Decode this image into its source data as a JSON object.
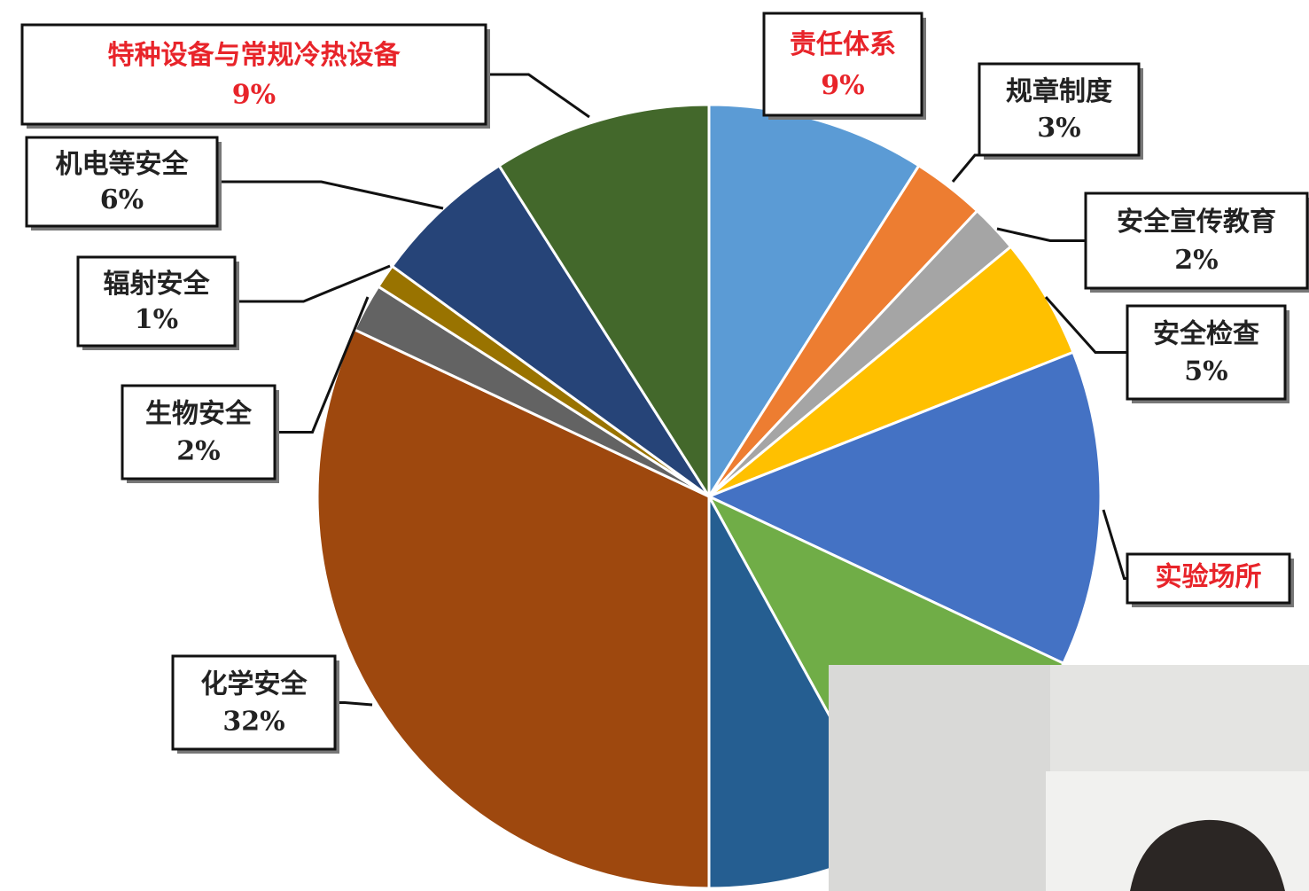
{
  "chart_data": {
    "type": "pie",
    "categories": [
      "责任体系",
      "规章制度",
      "安全宣传教育",
      "安全检查",
      "实验场所",
      null,
      null,
      "化学安全",
      "生物安全",
      "辐射安全",
      "机电等安全",
      "特种设备与常规冷热设备"
    ],
    "values": [
      9,
      3,
      2,
      5,
      13,
      10,
      8,
      32,
      2,
      1,
      6,
      9
    ],
    "value_labels": [
      "9%",
      "3%",
      "2%",
      "5%",
      null,
      null,
      null,
      "32%",
      "2%",
      "1%",
      "6%",
      "9%"
    ],
    "colors": [
      "#5b9bd5",
      "#ed7d31",
      "#a5a5a5",
      "#ffc000",
      "#4472c4",
      "#70ad47",
      "#255e91",
      "#9e480e",
      "#636363",
      "#997300",
      "#264478",
      "#43682b"
    ],
    "label_colors": [
      "#e8242a",
      "#222222",
      "#222222",
      "#222222",
      "#e8242a",
      null,
      null,
      "#222222",
      "#222222",
      "#222222",
      "#222222",
      "#e8242a"
    ]
  }
}
